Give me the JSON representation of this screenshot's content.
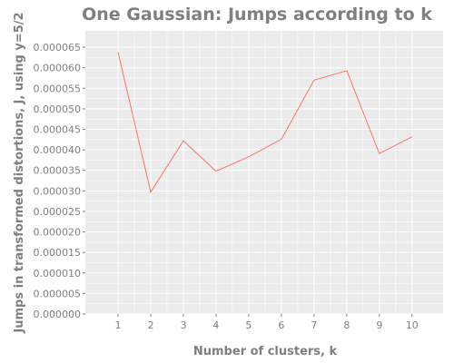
{
  "chart_data": {
    "type": "line",
    "title": "One Gaussian: Jumps according to k",
    "xlabel": "Number of clusters, k",
    "ylabel": "Jumps in transformed distortions, J, using y=5/2",
    "x": [
      1,
      2,
      3,
      4,
      5,
      6,
      7,
      8,
      9,
      10
    ],
    "series": [
      {
        "values": [
          6.38e-05,
          2.97e-05,
          4.22e-05,
          3.48e-05,
          3.83e-05,
          4.26e-05,
          5.7e-05,
          5.93e-05,
          3.91e-05,
          4.32e-05
        ],
        "color": "#f8766d"
      }
    ],
    "xlim": [
      0,
      10.95
    ],
    "ylim": [
      0,
      6.9e-05
    ],
    "xticks": [
      "1",
      "2",
      "3",
      "4",
      "5",
      "6",
      "7",
      "8",
      "9",
      "10"
    ],
    "yticks": [
      "0.000000",
      "0.000005",
      "0.000010",
      "0.000015",
      "0.000020",
      "0.000025",
      "0.000030",
      "0.000035",
      "0.000040",
      "0.000045",
      "0.000050",
      "0.000055",
      "0.000060",
      "0.000065"
    ],
    "grid": true,
    "panel_background": "#ebebeb",
    "grid_color": "#ffffff"
  }
}
